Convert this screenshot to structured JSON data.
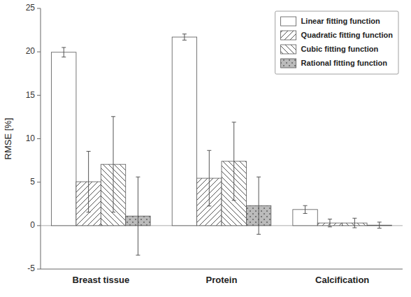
{
  "chart_data": {
    "type": "bar",
    "categories": [
      "Breast tissue",
      "Protein",
      "Calcification"
    ],
    "series": [
      {
        "name": "Linear fitting function",
        "color": "white",
        "values": [
          19.95,
          21.7,
          1.85
        ],
        "errors": [
          0.55,
          0.35,
          0.45
        ]
      },
      {
        "name": "Quadratic fitting function",
        "color": "white",
        "values": [
          5.05,
          5.45,
          0.3
        ],
        "errors": [
          3.5,
          3.2,
          0.45
        ]
      },
      {
        "name": "Cubic fitting function",
        "color": "white",
        "values": [
          7.05,
          7.4,
          0.3
        ],
        "errors": [
          5.5,
          4.5,
          0.55
        ]
      },
      {
        "name": "Rational fitting function",
        "color": "#bbbbbb",
        "values": [
          1.1,
          2.3,
          0.05
        ],
        "errors": [
          4.5,
          3.3,
          0.35
        ]
      }
    ],
    "ylabel": "RMSE [%]",
    "ylim": [
      -5,
      25
    ],
    "yticks": [
      -5,
      0,
      5,
      10,
      15,
      20,
      25
    ],
    "grid": false,
    "legend": "upper right"
  }
}
